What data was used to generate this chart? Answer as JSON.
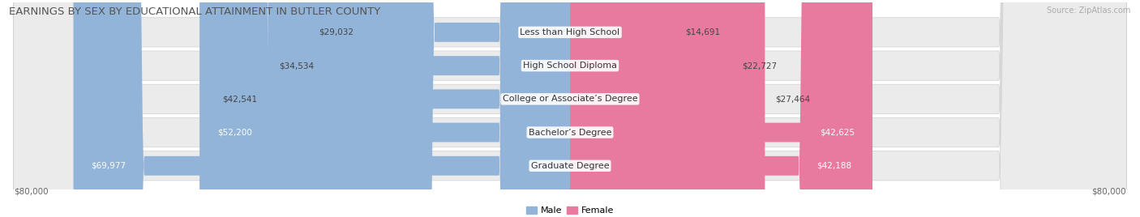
{
  "title": "EARNINGS BY SEX BY EDUCATIONAL ATTAINMENT IN BUTLER COUNTY",
  "source": "Source: ZipAtlas.com",
  "categories": [
    "Less than High School",
    "High School Diploma",
    "College or Associate’s Degree",
    "Bachelor’s Degree",
    "Graduate Degree"
  ],
  "male_values": [
    29032,
    34534,
    42541,
    52200,
    69977
  ],
  "female_values": [
    14691,
    22727,
    27464,
    42625,
    42188
  ],
  "male_color": "#92b4d8",
  "female_color": "#e87aa0",
  "row_bg_color": "#ebebeb",
  "row_alt_color": "#e0e0e0",
  "max_value": 80000,
  "title_fontsize": 9.5,
  "label_fontsize": 8,
  "value_fontsize": 7.5,
  "source_fontsize": 7,
  "male_inside_threshold": 45000,
  "female_inside_threshold": 35000
}
